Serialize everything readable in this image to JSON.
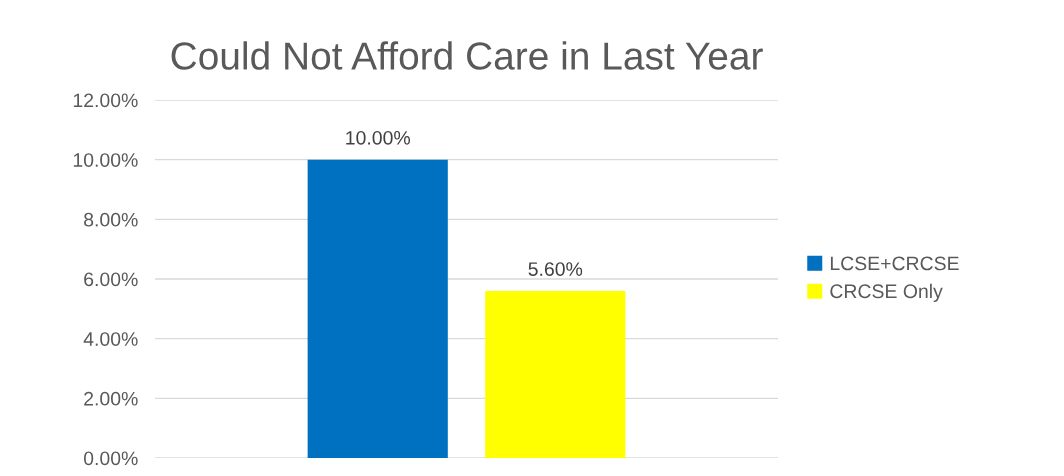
{
  "chart_data": {
    "type": "bar",
    "title": "Could Not Afford Care in Last Year",
    "categories": [
      null
    ],
    "series": [
      {
        "name": "LCSE+CRCSE",
        "color": "#0070c0",
        "values": [
          10.0
        ],
        "value_labels": [
          "10.00%"
        ]
      },
      {
        "name": "CRCSE Only",
        "color": "#ffff00",
        "values": [
          5.6
        ],
        "value_labels": [
          "5.60%"
        ]
      }
    ],
    "ylim": [
      0,
      12
    ],
    "yticks": [
      {
        "value": 0,
        "label": "0.00%"
      },
      {
        "value": 2,
        "label": "2.00%"
      },
      {
        "value": 4,
        "label": "4.00%"
      },
      {
        "value": 6,
        "label": "6.00%"
      },
      {
        "value": 8,
        "label": "8.00%"
      },
      {
        "value": 10,
        "label": "10.00%"
      },
      {
        "value": 12,
        "label": "12.00%"
      }
    ],
    "grid": "y",
    "legend": "right"
  }
}
